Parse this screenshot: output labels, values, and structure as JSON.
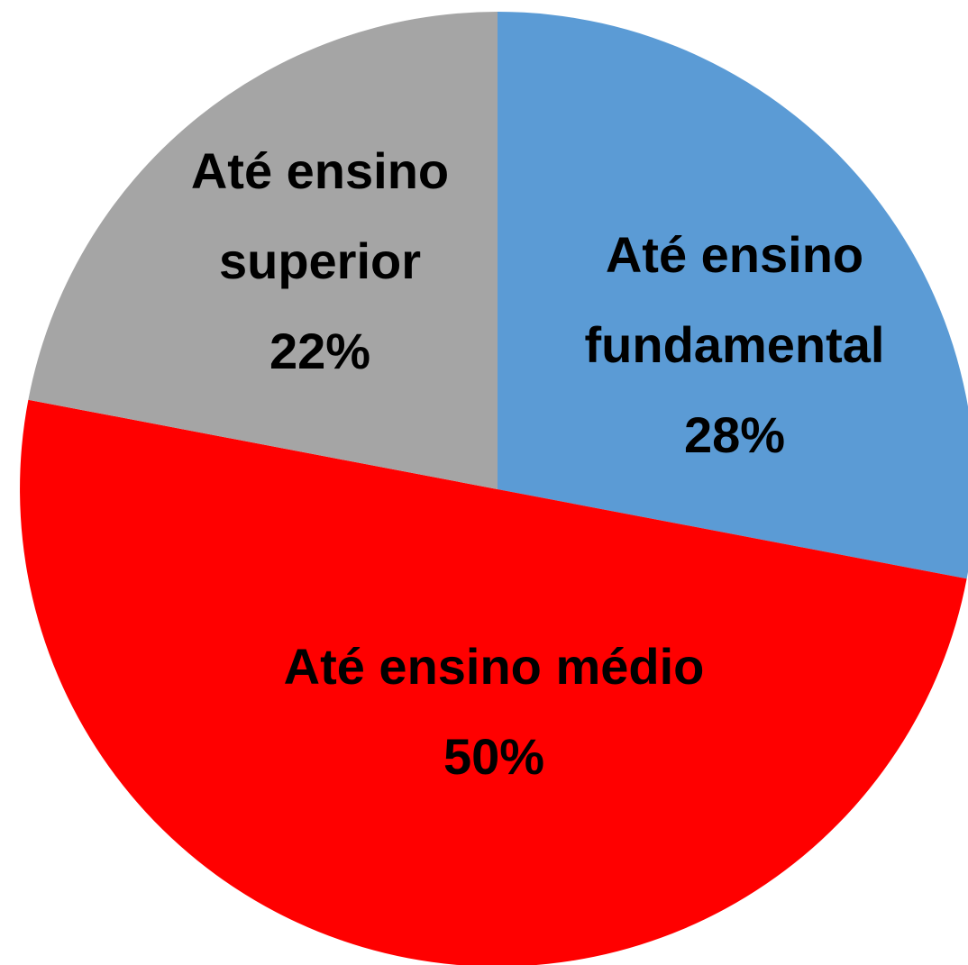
{
  "chart_data": {
    "type": "pie",
    "categories": [
      "Até ensino fundamental",
      "Até ensino médio",
      "Até ensino superior"
    ],
    "values": [
      28,
      50,
      22
    ],
    "value_labels": [
      "28%",
      "50%",
      "22%"
    ],
    "colors": [
      "#5b9bd5",
      "#ff0000",
      "#a5a5a5"
    ]
  }
}
